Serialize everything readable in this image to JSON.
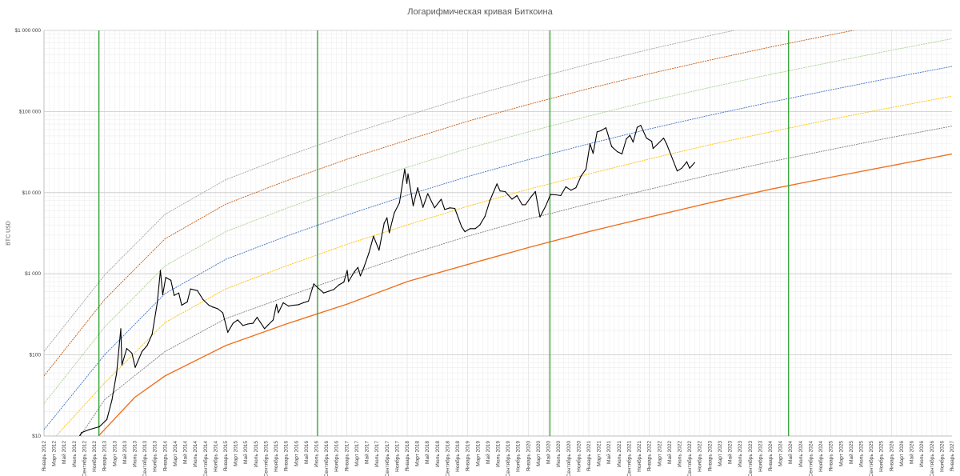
{
  "chart_data": {
    "type": "line",
    "title": "Логарифмическая кривая Биткоина",
    "ylabel": "BTC USD",
    "xlabel": "",
    "y_scale": "log",
    "ylim": [
      10,
      1000000
    ],
    "xlim": [
      "2012-01-01",
      "2027-01-01"
    ],
    "grid": true,
    "y_ticks": [
      {
        "value": 10,
        "label": "$10"
      },
      {
        "value": 100,
        "label": "$100"
      },
      {
        "value": 1000,
        "label": "$1 000"
      },
      {
        "value": 10000,
        "label": "$10 000"
      },
      {
        "value": 100000,
        "label": "$100 000"
      },
      {
        "value": 1000000,
        "label": "$1 000 000"
      }
    ],
    "x_tick_months": [
      "Январь",
      "Март",
      "Май",
      "Июль",
      "Сентябрь",
      "Ноябрь"
    ],
    "x_tick_years": [
      2012,
      2013,
      2014,
      2015,
      2016,
      2017,
      2018,
      2019,
      2020,
      2021,
      2022,
      2023,
      2024,
      2025,
      2026,
      2027
    ],
    "vertical_markers": [
      {
        "date": "2012-11-28",
        "color": "#2ca02c"
      },
      {
        "date": "2016-07-09",
        "color": "#2ca02c"
      },
      {
        "date": "2020-05-11",
        "color": "#2ca02c"
      },
      {
        "date": "2024-04-20",
        "color": "#2ca02c"
      }
    ],
    "bands": [
      {
        "color": "#f0701e",
        "values": [
          [
            2012.9,
            10
          ],
          [
            2013.5,
            30
          ],
          [
            2014.0,
            55
          ],
          [
            2015.0,
            130
          ],
          [
            2016.0,
            240
          ],
          [
            2017.0,
            420
          ],
          [
            2018.0,
            800
          ],
          [
            2019.0,
            1300
          ],
          [
            2020.0,
            2100
          ],
          [
            2021.0,
            3300
          ],
          [
            2022.0,
            5000
          ],
          [
            2023.0,
            7500
          ],
          [
            2024.0,
            11000
          ],
          [
            2025.0,
            15500
          ],
          [
            2026.0,
            21500
          ],
          [
            2027.0,
            30000
          ]
        ]
      },
      {
        "color": "#808080",
        "values": [
          [
            2012.6,
            10
          ],
          [
            2013.0,
            28
          ],
          [
            2014.0,
            110
          ],
          [
            2015.0,
            280
          ],
          [
            2016.0,
            520
          ],
          [
            2017.0,
            950
          ],
          [
            2018.0,
            1700
          ],
          [
            2019.0,
            2900
          ],
          [
            2020.0,
            4700
          ],
          [
            2021.0,
            7300
          ],
          [
            2022.0,
            11000
          ],
          [
            2023.0,
            16500
          ],
          [
            2024.0,
            24000
          ],
          [
            2025.0,
            34000
          ],
          [
            2026.0,
            48000
          ],
          [
            2027.0,
            66000
          ]
        ]
      },
      {
        "color": "#ffc000",
        "values": [
          [
            2012.2,
            10
          ],
          [
            2013.0,
            45
          ],
          [
            2014.0,
            250
          ],
          [
            2015.0,
            650
          ],
          [
            2016.0,
            1250
          ],
          [
            2017.0,
            2300
          ],
          [
            2018.0,
            4000
          ],
          [
            2019.0,
            6800
          ],
          [
            2020.0,
            11000
          ],
          [
            2021.0,
            17000
          ],
          [
            2022.0,
            26000
          ],
          [
            2023.0,
            39000
          ],
          [
            2024.0,
            56000
          ],
          [
            2025.0,
            80000
          ],
          [
            2026.0,
            112000
          ],
          [
            2027.0,
            155000
          ]
        ]
      },
      {
        "color": "#4472c4",
        "values": [
          [
            2012.0,
            12
          ],
          [
            2013.0,
            100
          ],
          [
            2014.0,
            570
          ],
          [
            2015.0,
            1500
          ],
          [
            2016.0,
            2900
          ],
          [
            2017.0,
            5300
          ],
          [
            2018.0,
            9300
          ],
          [
            2019.0,
            15800
          ],
          [
            2020.0,
            25500
          ],
          [
            2021.0,
            40000
          ],
          [
            2022.0,
            61000
          ],
          [
            2023.0,
            90000
          ],
          [
            2024.0,
            130000
          ],
          [
            2025.0,
            185000
          ],
          [
            2026.0,
            260000
          ],
          [
            2027.0,
            360000
          ]
        ]
      },
      {
        "color": "#a9d18e",
        "values": [
          [
            2012.0,
            25
          ],
          [
            2013.0,
            220
          ],
          [
            2014.0,
            1250
          ],
          [
            2015.0,
            3300
          ],
          [
            2016.0,
            6400
          ],
          [
            2017.0,
            11800
          ],
          [
            2018.0,
            20500
          ],
          [
            2019.0,
            35000
          ],
          [
            2020.0,
            56000
          ],
          [
            2021.0,
            88000
          ],
          [
            2022.0,
            134000
          ],
          [
            2023.0,
            198000
          ],
          [
            2024.0,
            286000
          ],
          [
            2025.0,
            405000
          ],
          [
            2026.0,
            570000
          ],
          [
            2027.0,
            790000
          ]
        ]
      },
      {
        "color": "#c55a11",
        "values": [
          [
            2012.0,
            55
          ],
          [
            2013.0,
            480
          ],
          [
            2014.0,
            2700
          ],
          [
            2015.0,
            7200
          ],
          [
            2016.0,
            14000
          ],
          [
            2017.0,
            25700
          ],
          [
            2018.0,
            44500
          ],
          [
            2019.0,
            76000
          ],
          [
            2020.0,
            122000
          ],
          [
            2021.0,
            192000
          ],
          [
            2022.0,
            292000
          ],
          [
            2023.0,
            431000
          ],
          [
            2024.0,
            623000
          ],
          [
            2025.0,
            883000
          ],
          [
            2026.0,
            1240000
          ],
          [
            2027.0,
            1720000
          ]
        ]
      },
      {
        "color": "#a5a5a5",
        "values": [
          [
            2012.0,
            110
          ],
          [
            2013.0,
            960
          ],
          [
            2014.0,
            5400
          ],
          [
            2015.0,
            14400
          ],
          [
            2016.0,
            28000
          ],
          [
            2017.0,
            51400
          ],
          [
            2018.0,
            89000
          ],
          [
            2019.0,
            152000
          ],
          [
            2020.0,
            244000
          ],
          [
            2021.0,
            384000
          ],
          [
            2022.0,
            584000
          ],
          [
            2023.0,
            862000
          ],
          [
            2024.0,
            1246000
          ],
          [
            2025.0,
            1766000
          ],
          [
            2026.0,
            2480000
          ],
          [
            2027.0,
            3440000
          ]
        ]
      }
    ],
    "series": [
      {
        "color": "#000000",
        "values": [
          [
            "2012-06-01",
            6
          ],
          [
            "2012-08-15",
            11
          ],
          [
            "2012-10-01",
            12
          ],
          [
            "2012-12-01",
            13
          ],
          [
            "2013-01-15",
            16
          ],
          [
            "2013-02-15",
            28
          ],
          [
            "2013-03-15",
            60
          ],
          [
            "2013-04-09",
            210
          ],
          [
            "2013-04-16",
            75
          ],
          [
            "2013-05-15",
            120
          ],
          [
            "2013-06-15",
            105
          ],
          [
            "2013-07-05",
            70
          ],
          [
            "2013-08-15",
            110
          ],
          [
            "2013-09-15",
            130
          ],
          [
            "2013-10-15",
            180
          ],
          [
            "2013-11-15",
            440
          ],
          [
            "2013-12-04",
            1100
          ],
          [
            "2013-12-18",
            550
          ],
          [
            "2014-01-05",
            900
          ],
          [
            "2014-02-05",
            830
          ],
          [
            "2014-02-25",
            540
          ],
          [
            "2014-03-25",
            580
          ],
          [
            "2014-04-11",
            410
          ],
          [
            "2014-05-15",
            450
          ],
          [
            "2014-06-03",
            650
          ],
          [
            "2014-07-15",
            620
          ],
          [
            "2014-08-18",
            480
          ],
          [
            "2014-09-22",
            410
          ],
          [
            "2014-10-15",
            390
          ],
          [
            "2014-11-15",
            370
          ],
          [
            "2014-12-15",
            330
          ],
          [
            "2015-01-14",
            190
          ],
          [
            "2015-02-15",
            245
          ],
          [
            "2015-03-15",
            270
          ],
          [
            "2015-04-15",
            230
          ],
          [
            "2015-05-15",
            240
          ],
          [
            "2015-06-15",
            245
          ],
          [
            "2015-07-10",
            290
          ],
          [
            "2015-08-24",
            210
          ],
          [
            "2015-09-15",
            235
          ],
          [
            "2015-10-15",
            270
          ],
          [
            "2015-11-04",
            420
          ],
          [
            "2015-11-15",
            330
          ],
          [
            "2015-12-15",
            440
          ],
          [
            "2016-01-15",
            400
          ],
          [
            "2016-02-15",
            410
          ],
          [
            "2016-03-15",
            415
          ],
          [
            "2016-04-15",
            440
          ],
          [
            "2016-05-15",
            460
          ],
          [
            "2016-06-16",
            750
          ],
          [
            "2016-07-15",
            660
          ],
          [
            "2016-08-15",
            580
          ],
          [
            "2016-09-15",
            610
          ],
          [
            "2016-10-15",
            640
          ],
          [
            "2016-11-15",
            730
          ],
          [
            "2016-12-15",
            790
          ],
          [
            "2017-01-04",
            1100
          ],
          [
            "2017-01-12",
            800
          ],
          [
            "2017-02-15",
            1050
          ],
          [
            "2017-03-10",
            1200
          ],
          [
            "2017-03-25",
            940
          ],
          [
            "2017-04-15",
            1200
          ],
          [
            "2017-05-15",
            1800
          ],
          [
            "2017-06-12",
            2900
          ],
          [
            "2017-07-15",
            1950
          ],
          [
            "2017-08-15",
            4200
          ],
          [
            "2017-09-01",
            4900
          ],
          [
            "2017-09-15",
            3200
          ],
          [
            "2017-10-15",
            5600
          ],
          [
            "2017-11-15",
            7500
          ],
          [
            "2017-12-17",
            19500
          ],
          [
            "2017-12-30",
            13000
          ],
          [
            "2018-01-06",
            17000
          ],
          [
            "2018-02-06",
            6900
          ],
          [
            "2018-03-05",
            11500
          ],
          [
            "2018-04-06",
            6600
          ],
          [
            "2018-05-05",
            9700
          ],
          [
            "2018-06-15",
            6500
          ],
          [
            "2018-07-25",
            8300
          ],
          [
            "2018-08-15",
            6200
          ],
          [
            "2018-09-15",
            6500
          ],
          [
            "2018-10-15",
            6400
          ],
          [
            "2018-11-25",
            3800
          ],
          [
            "2018-12-15",
            3300
          ],
          [
            "2019-01-15",
            3600
          ],
          [
            "2019-02-15",
            3600
          ],
          [
            "2019-03-15",
            4000
          ],
          [
            "2019-04-15",
            5100
          ],
          [
            "2019-05-15",
            8000
          ],
          [
            "2019-06-26",
            12800
          ],
          [
            "2019-07-15",
            10500
          ],
          [
            "2019-08-15",
            10300
          ],
          [
            "2019-09-25",
            8300
          ],
          [
            "2019-10-25",
            9200
          ],
          [
            "2019-11-25",
            7100
          ],
          [
            "2019-12-15",
            7100
          ],
          [
            "2020-01-15",
            8700
          ],
          [
            "2020-02-13",
            10300
          ],
          [
            "2020-03-12",
            5000
          ],
          [
            "2020-04-15",
            6800
          ],
          [
            "2020-05-15",
            9500
          ],
          [
            "2020-06-15",
            9400
          ],
          [
            "2020-07-15",
            9200
          ],
          [
            "2020-08-15",
            11800
          ],
          [
            "2020-09-15",
            10700
          ],
          [
            "2020-10-15",
            11500
          ],
          [
            "2020-11-15",
            16000
          ],
          [
            "2020-12-15",
            19500
          ],
          [
            "2021-01-08",
            40000
          ],
          [
            "2021-01-27",
            30500
          ],
          [
            "2021-02-20",
            56000
          ],
          [
            "2021-03-15",
            58000
          ],
          [
            "2021-04-14",
            63000
          ],
          [
            "2021-05-19",
            37000
          ],
          [
            "2021-06-22",
            32000
          ],
          [
            "2021-07-20",
            30000
          ],
          [
            "2021-08-15",
            46000
          ],
          [
            "2021-09-06",
            51000
          ],
          [
            "2021-09-25",
            42000
          ],
          [
            "2021-10-20",
            64000
          ],
          [
            "2021-11-10",
            67500
          ],
          [
            "2021-12-15",
            47000
          ],
          [
            "2022-01-15",
            43000
          ],
          [
            "2022-01-24",
            35000
          ],
          [
            "2022-03-28",
            47000
          ],
          [
            "2022-04-15",
            40000
          ],
          [
            "2022-05-12",
            29000
          ],
          [
            "2022-06-18",
            18500
          ],
          [
            "2022-07-15",
            20000
          ],
          [
            "2022-08-15",
            24000
          ],
          [
            "2022-09-01",
            20000
          ],
          [
            "2022-09-15",
            21500
          ],
          [
            "2022-10-01",
            23500
          ]
        ]
      }
    ]
  }
}
